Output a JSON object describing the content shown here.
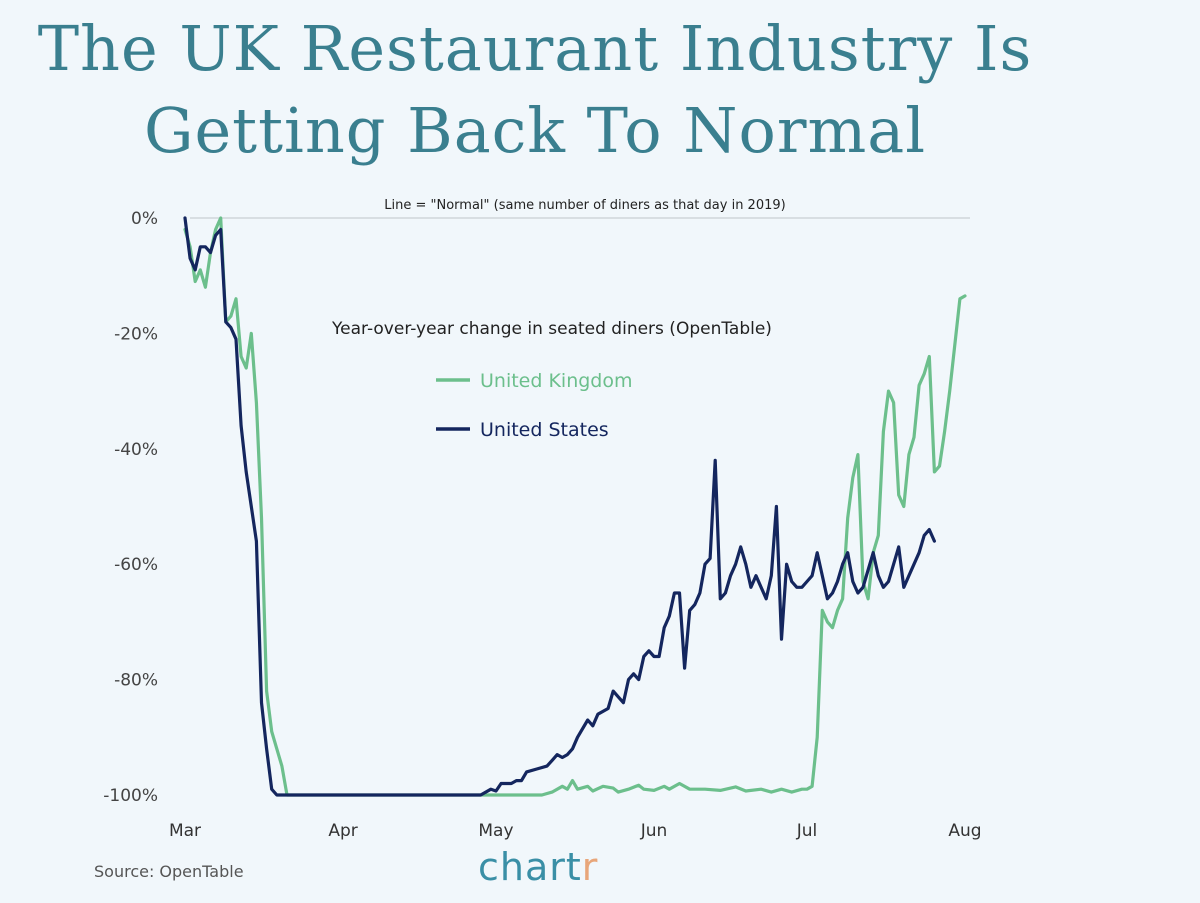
{
  "title_lines": [
    "The UK Restaurant Industry Is",
    "Getting Back To Normal"
  ],
  "source": "Source: OpenTable",
  "brand": {
    "main": "chart",
    "accent": "r"
  },
  "colors": {
    "uk": "#6cbf8c",
    "us": "#14265e",
    "title": "#3a7f8f",
    "brand": "#3a8fa6",
    "brand_accent": "#e8a67a"
  },
  "chart_data": {
    "type": "line",
    "subtitle": "Year-over-year change in seated diners (OpenTable)",
    "annotation": "Line = \"Normal\" (same number of diners as that day in 2019)",
    "xlabel": "",
    "ylabel": "",
    "ylim": [
      -100,
      0
    ],
    "xlim": [
      "2020-03-01",
      "2020-08-01"
    ],
    "yticks": [
      0,
      -20,
      -40,
      -60,
      -80,
      -100
    ],
    "ytick_labels": [
      "0%",
      "-20%",
      "-40%",
      "-60%",
      "-80%",
      "-100%"
    ],
    "xticks": [
      "2020-03-01",
      "2020-04-01",
      "2020-05-01",
      "2020-06-01",
      "2020-07-01",
      "2020-08-01"
    ],
    "xtick_labels": [
      "Mar",
      "Apr",
      "May",
      "Jun",
      "Jul",
      "Aug"
    ],
    "grid": false,
    "legend_position": "center-left",
    "series": [
      {
        "name": "United Kingdom",
        "points": [
          [
            "2020-03-01",
            -2
          ],
          [
            "2020-03-02",
            -5
          ],
          [
            "2020-03-03",
            -11
          ],
          [
            "2020-03-04",
            -9
          ],
          [
            "2020-03-05",
            -12
          ],
          [
            "2020-03-06",
            -6
          ],
          [
            "2020-03-07",
            -2
          ],
          [
            "2020-03-08",
            0
          ],
          [
            "2020-03-09",
            -18
          ],
          [
            "2020-03-10",
            -17
          ],
          [
            "2020-03-11",
            -14
          ],
          [
            "2020-03-12",
            -24
          ],
          [
            "2020-03-13",
            -26
          ],
          [
            "2020-03-14",
            -20
          ],
          [
            "2020-03-15",
            -32
          ],
          [
            "2020-03-16",
            -52
          ],
          [
            "2020-03-17",
            -82
          ],
          [
            "2020-03-18",
            -89
          ],
          [
            "2020-03-19",
            -92
          ],
          [
            "2020-03-20",
            -95
          ],
          [
            "2020-03-21",
            -100
          ],
          [
            "2020-04-01",
            -100
          ],
          [
            "2020-05-01",
            -100
          ],
          [
            "2020-05-10",
            -100
          ],
          [
            "2020-05-12",
            -99.5
          ],
          [
            "2020-05-14",
            -98.5
          ],
          [
            "2020-05-15",
            -99
          ],
          [
            "2020-05-16",
            -97.5
          ],
          [
            "2020-05-17",
            -99
          ],
          [
            "2020-05-19",
            -98.5
          ],
          [
            "2020-05-20",
            -99.3
          ],
          [
            "2020-05-22",
            -98.5
          ],
          [
            "2020-05-24",
            -98.8
          ],
          [
            "2020-05-25",
            -99.5
          ],
          [
            "2020-05-27",
            -99
          ],
          [
            "2020-05-29",
            -98.3
          ],
          [
            "2020-05-30",
            -99
          ],
          [
            "2020-06-01",
            -99.2
          ],
          [
            "2020-06-03",
            -98.5
          ],
          [
            "2020-06-04",
            -99
          ],
          [
            "2020-06-06",
            -98
          ],
          [
            "2020-06-08",
            -99
          ],
          [
            "2020-06-11",
            -99
          ],
          [
            "2020-06-14",
            -99.2
          ],
          [
            "2020-06-17",
            -98.6
          ],
          [
            "2020-06-19",
            -99.3
          ],
          [
            "2020-06-22",
            -99
          ],
          [
            "2020-06-24",
            -99.5
          ],
          [
            "2020-06-26",
            -99
          ],
          [
            "2020-06-28",
            -99.5
          ],
          [
            "2020-06-30",
            -99
          ],
          [
            "2020-07-01",
            -99
          ],
          [
            "2020-07-02",
            -98.5
          ],
          [
            "2020-07-03",
            -90
          ],
          [
            "2020-07-04",
            -68
          ],
          [
            "2020-07-05",
            -70
          ],
          [
            "2020-07-06",
            -71
          ],
          [
            "2020-07-07",
            -68
          ],
          [
            "2020-07-08",
            -66
          ],
          [
            "2020-07-09",
            -52
          ],
          [
            "2020-07-10",
            -45
          ],
          [
            "2020-07-11",
            -41
          ],
          [
            "2020-07-12",
            -63
          ],
          [
            "2020-07-13",
            -66
          ],
          [
            "2020-07-14",
            -58
          ],
          [
            "2020-07-15",
            -55
          ],
          [
            "2020-07-16",
            -37
          ],
          [
            "2020-07-17",
            -30
          ],
          [
            "2020-07-18",
            -32
          ],
          [
            "2020-07-19",
            -48
          ],
          [
            "2020-07-20",
            -50
          ],
          [
            "2020-07-21",
            -41
          ],
          [
            "2020-07-22",
            -38
          ],
          [
            "2020-07-23",
            -29
          ],
          [
            "2020-07-24",
            -27
          ],
          [
            "2020-07-25",
            -24
          ],
          [
            "2020-07-26",
            -44
          ],
          [
            "2020-07-27",
            -43
          ],
          [
            "2020-07-28",
            -37
          ],
          [
            "2020-07-29",
            -30
          ],
          [
            "2020-07-30",
            -22
          ],
          [
            "2020-07-31",
            -14
          ],
          [
            "2020-08-01",
            -13.5
          ]
        ]
      },
      {
        "name": "United States",
        "points": [
          [
            "2020-03-01",
            0
          ],
          [
            "2020-03-02",
            -7
          ],
          [
            "2020-03-03",
            -9
          ],
          [
            "2020-03-04",
            -5
          ],
          [
            "2020-03-05",
            -5
          ],
          [
            "2020-03-06",
            -6
          ],
          [
            "2020-03-07",
            -3
          ],
          [
            "2020-03-08",
            -2
          ],
          [
            "2020-03-09",
            -18
          ],
          [
            "2020-03-10",
            -19
          ],
          [
            "2020-03-11",
            -21
          ],
          [
            "2020-03-12",
            -36
          ],
          [
            "2020-03-13",
            -44
          ],
          [
            "2020-03-14",
            -50
          ],
          [
            "2020-03-15",
            -56
          ],
          [
            "2020-03-16",
            -84
          ],
          [
            "2020-03-17",
            -92
          ],
          [
            "2020-03-18",
            -99
          ],
          [
            "2020-03-19",
            -100
          ],
          [
            "2020-04-01",
            -100
          ],
          [
            "2020-04-28",
            -100
          ],
          [
            "2020-04-30",
            -99
          ],
          [
            "2020-05-01",
            -99.3
          ],
          [
            "2020-05-02",
            -98
          ],
          [
            "2020-05-04",
            -98
          ],
          [
            "2020-05-05",
            -97.5
          ],
          [
            "2020-05-06",
            -97.5
          ],
          [
            "2020-05-07",
            -96
          ],
          [
            "2020-05-09",
            -95.5
          ],
          [
            "2020-05-11",
            -95
          ],
          [
            "2020-05-12",
            -94
          ],
          [
            "2020-05-13",
            -93
          ],
          [
            "2020-05-14",
            -93.5
          ],
          [
            "2020-05-15",
            -93
          ],
          [
            "2020-05-16",
            -92
          ],
          [
            "2020-05-17",
            -90
          ],
          [
            "2020-05-19",
            -87
          ],
          [
            "2020-05-20",
            -88
          ],
          [
            "2020-05-21",
            -86
          ],
          [
            "2020-05-23",
            -85
          ],
          [
            "2020-05-24",
            -82
          ],
          [
            "2020-05-25",
            -83
          ],
          [
            "2020-05-26",
            -84
          ],
          [
            "2020-05-27",
            -80
          ],
          [
            "2020-05-28",
            -79
          ],
          [
            "2020-05-29",
            -80
          ],
          [
            "2020-05-30",
            -76
          ],
          [
            "2020-05-31",
            -75
          ],
          [
            "2020-06-01",
            -76
          ],
          [
            "2020-06-02",
            -76
          ],
          [
            "2020-06-03",
            -71
          ],
          [
            "2020-06-04",
            -69
          ],
          [
            "2020-06-05",
            -65
          ],
          [
            "2020-06-06",
            -65
          ],
          [
            "2020-06-07",
            -78
          ],
          [
            "2020-06-08",
            -68
          ],
          [
            "2020-06-09",
            -67
          ],
          [
            "2020-06-10",
            -65
          ],
          [
            "2020-06-11",
            -60
          ],
          [
            "2020-06-12",
            -59
          ],
          [
            "2020-06-13",
            -42
          ],
          [
            "2020-06-14",
            -66
          ],
          [
            "2020-06-15",
            -65
          ],
          [
            "2020-06-16",
            -62
          ],
          [
            "2020-06-17",
            -60
          ],
          [
            "2020-06-18",
            -57
          ],
          [
            "2020-06-19",
            -60
          ],
          [
            "2020-06-20",
            -64
          ],
          [
            "2020-06-21",
            -62
          ],
          [
            "2020-06-22",
            -64
          ],
          [
            "2020-06-23",
            -66
          ],
          [
            "2020-06-24",
            -62
          ],
          [
            "2020-06-25",
            -50
          ],
          [
            "2020-06-26",
            -73
          ],
          [
            "2020-06-27",
            -60
          ],
          [
            "2020-06-28",
            -63
          ],
          [
            "2020-06-29",
            -64
          ],
          [
            "2020-06-30",
            -64
          ],
          [
            "2020-07-01",
            -63
          ],
          [
            "2020-07-02",
            -62
          ],
          [
            "2020-07-03",
            -58
          ],
          [
            "2020-07-04",
            -62
          ],
          [
            "2020-07-05",
            -66
          ],
          [
            "2020-07-06",
            -65
          ],
          [
            "2020-07-07",
            -63
          ],
          [
            "2020-07-08",
            -60
          ],
          [
            "2020-07-09",
            -58
          ],
          [
            "2020-07-10",
            -63
          ],
          [
            "2020-07-11",
            -65
          ],
          [
            "2020-07-12",
            -64
          ],
          [
            "2020-07-13",
            -61
          ],
          [
            "2020-07-14",
            -58
          ],
          [
            "2020-07-15",
            -62
          ],
          [
            "2020-07-16",
            -64
          ],
          [
            "2020-07-17",
            -63
          ],
          [
            "2020-07-18",
            -60
          ],
          [
            "2020-07-19",
            -57
          ],
          [
            "2020-07-20",
            -64
          ],
          [
            "2020-07-21",
            -62
          ],
          [
            "2020-07-22",
            -60
          ],
          [
            "2020-07-23",
            -58
          ],
          [
            "2020-07-24",
            -55
          ],
          [
            "2020-07-25",
            -54
          ],
          [
            "2020-07-26",
            -56
          ]
        ]
      }
    ]
  }
}
